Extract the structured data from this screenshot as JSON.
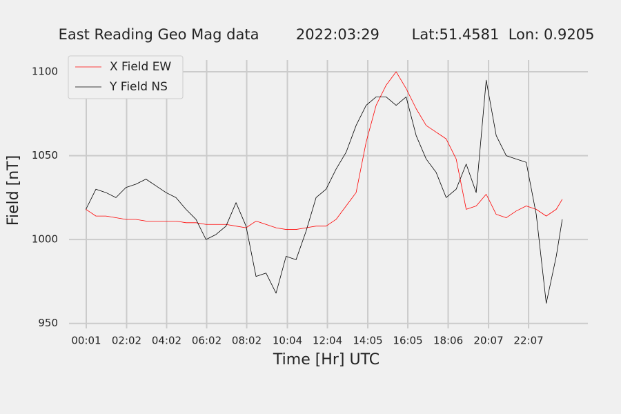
{
  "chart_data": {
    "type": "line",
    "title": "East Reading Geo Mag data        2022:03:29       Lat:51.4581  Lon: 0.9205",
    "x_label": "Time  [Hr]  UTC",
    "y_label": "Field  [nT]",
    "x": [
      0,
      0.5,
      1,
      1.5,
      2,
      2.5,
      3,
      3.5,
      4,
      4.5,
      5,
      5.5,
      6,
      6.5,
      7,
      7.5,
      8,
      8.5,
      9,
      9.5,
      10,
      10.5,
      11,
      11.5,
      12,
      12.5,
      13,
      13.5,
      14,
      14.5,
      15,
      15.5,
      16,
      16.5,
      17,
      17.5,
      18,
      18.5,
      19,
      19.5,
      20,
      20.5,
      21,
      21.5,
      22,
      22.5,
      23,
      23.5,
      23.8
    ],
    "series": [
      {
        "name": "X Field EW",
        "color": "#ff0000",
        "values": [
          1018,
          1014,
          1014,
          1013,
          1012,
          1012,
          1011,
          1011,
          1011,
          1011,
          1010,
          1010,
          1009,
          1009,
          1009,
          1008,
          1007,
          1011,
          1009,
          1007,
          1006,
          1006,
          1007,
          1008,
          1008,
          1012,
          1020,
          1028,
          1058,
          1080,
          1092,
          1100,
          1090,
          1078,
          1068,
          1064,
          1060,
          1048,
          1018,
          1020,
          1027,
          1015,
          1013,
          1017,
          1020,
          1018,
          1014,
          1018,
          1024
        ]
      },
      {
        "name": "Y Field NS",
        "color": "#000000",
        "values": [
          1018,
          1030,
          1028,
          1025,
          1031,
          1033,
          1036,
          1032,
          1028,
          1025,
          1018,
          1012,
          1000,
          1003,
          1008,
          1022,
          1008,
          978,
          980,
          968,
          990,
          988,
          1005,
          1025,
          1030,
          1042,
          1052,
          1068,
          1080,
          1085,
          1085,
          1080,
          1085,
          1062,
          1048,
          1040,
          1025,
          1030,
          1045,
          1028,
          1095,
          1062,
          1050,
          1048,
          1046,
          1015,
          962,
          990,
          1012
        ]
      }
    ],
    "xlim": [
      -0.845,
      25.08
    ],
    "xticks": [
      {
        "value": 0.0167,
        "label": "00:01"
      },
      {
        "value": 2.0333,
        "label": "02:02"
      },
      {
        "value": 4.0333,
        "label": "04:02"
      },
      {
        "value": 6.0333,
        "label": "06:02"
      },
      {
        "value": 8.0333,
        "label": "08:02"
      },
      {
        "value": 10.0667,
        "label": "10:04"
      },
      {
        "value": 12.0667,
        "label": "12:04"
      },
      {
        "value": 14.0833,
        "label": "14:05"
      },
      {
        "value": 16.0833,
        "label": "16:05"
      },
      {
        "value": 18.1,
        "label": "18:06"
      },
      {
        "value": 20.1167,
        "label": "20:07"
      },
      {
        "value": 22.1167,
        "label": "22:07"
      }
    ],
    "ylim": [
      947,
      1107
    ],
    "yticks": [
      950,
      1000,
      1050,
      1100
    ],
    "grid": true,
    "legend": "upper left"
  }
}
